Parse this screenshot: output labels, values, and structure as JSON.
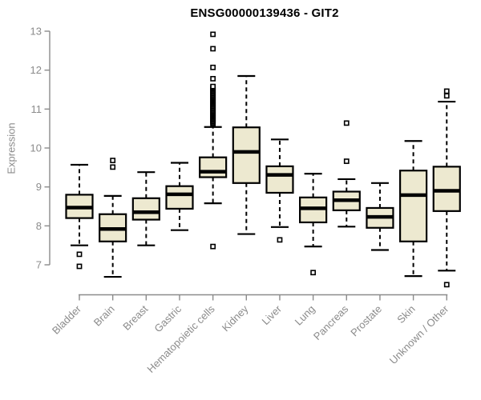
{
  "chart_data": {
    "type": "boxplot",
    "title": "ENSG00000139436 - GIT2",
    "ylabel": "Expression",
    "xlabel": "",
    "ylim": [
      7,
      13
    ],
    "yticks": [
      "7",
      "8",
      "9",
      "10",
      "11",
      "12",
      "13"
    ],
    "grid": false,
    "legend": "none",
    "colors": {
      "box_fill": "#EDE9D0",
      "box_border": "#000000",
      "median": "#000000",
      "axis": "#8b8b8b",
      "tick_text": "#8b8b8b",
      "title_text": "#000000",
      "background": "#ffffff"
    },
    "categories": [
      "Bladder",
      "Brain",
      "Breast",
      "Gastric",
      "Hematopoietic cells",
      "Kidney",
      "Liver",
      "Lung",
      "Pancreas",
      "Prostate",
      "Skin",
      "Unknown / Other"
    ],
    "series": [
      {
        "category": "Bladder",
        "whisker_low": 7.5,
        "q1": 8.2,
        "median": 8.47,
        "q3": 8.8,
        "whisker_high": 9.57,
        "outliers": [
          7.27,
          6.96
        ]
      },
      {
        "category": "Brain",
        "whisker_low": 6.69,
        "q1": 7.6,
        "median": 7.92,
        "q3": 8.3,
        "whisker_high": 8.77,
        "outliers": [
          9.68,
          9.51
        ]
      },
      {
        "category": "Breast",
        "whisker_low": 7.5,
        "q1": 8.16,
        "median": 8.35,
        "q3": 8.71,
        "whisker_high": 9.38,
        "outliers": []
      },
      {
        "category": "Gastric",
        "whisker_low": 7.89,
        "q1": 8.44,
        "median": 8.81,
        "q3": 9.02,
        "whisker_high": 9.62,
        "outliers": []
      },
      {
        "category": "Hematopoietic cells",
        "whisker_low": 8.58,
        "q1": 9.25,
        "median": 9.39,
        "q3": 9.76,
        "whisker_high": 10.54,
        "outliers": [
          12.92,
          12.55,
          12.07,
          11.78,
          7.47
        ],
        "dense_outlier_range": [
          10.62,
          11.58
        ],
        "dense_outlier_step": 0.03
      },
      {
        "category": "Kidney",
        "whisker_low": 7.79,
        "q1": 9.1,
        "median": 9.9,
        "q3": 10.53,
        "whisker_high": 11.85,
        "outliers": []
      },
      {
        "category": "Liver",
        "whisker_low": 7.97,
        "q1": 8.85,
        "median": 9.31,
        "q3": 9.53,
        "whisker_high": 10.22,
        "outliers": [
          7.64
        ]
      },
      {
        "category": "Lung",
        "whisker_low": 7.47,
        "q1": 8.09,
        "median": 8.45,
        "q3": 8.73,
        "whisker_high": 9.34,
        "outliers": [
          6.8
        ]
      },
      {
        "category": "Pancreas",
        "whisker_low": 7.98,
        "q1": 8.4,
        "median": 8.66,
        "q3": 8.88,
        "whisker_high": 9.2,
        "outliers": [
          10.64,
          9.66
        ]
      },
      {
        "category": "Prostate",
        "whisker_low": 7.38,
        "q1": 7.95,
        "median": 8.23,
        "q3": 8.46,
        "whisker_high": 9.1,
        "outliers": []
      },
      {
        "category": "Skin",
        "whisker_low": 6.71,
        "q1": 7.6,
        "median": 8.79,
        "q3": 9.42,
        "whisker_high": 10.18,
        "outliers": []
      },
      {
        "category": "Unknown / Other",
        "whisker_low": 6.85,
        "q1": 8.38,
        "median": 8.9,
        "q3": 9.52,
        "whisker_high": 11.19,
        "outliers": [
          11.46,
          11.34,
          6.49
        ]
      }
    ]
  }
}
